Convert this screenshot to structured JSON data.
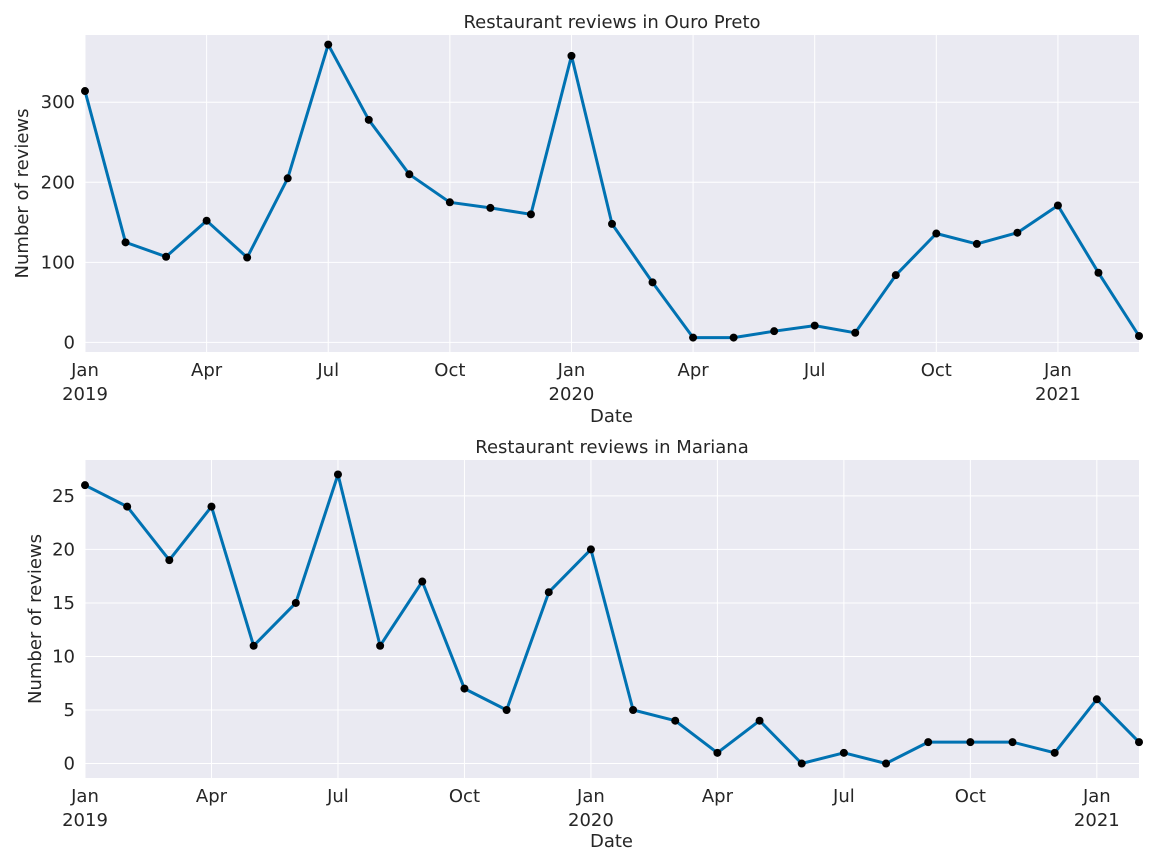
{
  "chart_data": [
    {
      "type": "line",
      "title": "Restaurant reviews in Ouro Preto",
      "xlabel": "Date",
      "ylabel": "Number of reviews",
      "x": [
        "2019-01",
        "2019-02",
        "2019-03",
        "2019-04",
        "2019-05",
        "2019-06",
        "2019-07",
        "2019-08",
        "2019-09",
        "2019-10",
        "2019-11",
        "2019-12",
        "2020-01",
        "2020-02",
        "2020-03",
        "2020-04",
        "2020-05",
        "2020-06",
        "2020-07",
        "2020-08",
        "2020-09",
        "2020-10",
        "2020-11",
        "2020-12",
        "2021-01",
        "2021-02",
        "2021-03"
      ],
      "values": [
        314,
        125,
        107,
        152,
        106,
        205,
        372,
        278,
        210,
        175,
        168,
        160,
        358,
        148,
        75,
        6,
        6,
        14,
        21,
        12,
        84,
        136,
        123,
        137,
        171,
        87,
        8
      ],
      "ylim": [
        -12,
        384
      ],
      "yticks": [
        0,
        100,
        200,
        300
      ],
      "xticks": [
        {
          "x": "2019-01",
          "label": "Jan",
          "sublabel": "2019"
        },
        {
          "x": "2019-04",
          "label": "Apr",
          "sublabel": ""
        },
        {
          "x": "2019-07",
          "label": "Jul",
          "sublabel": ""
        },
        {
          "x": "2019-10",
          "label": "Oct",
          "sublabel": ""
        },
        {
          "x": "2020-01",
          "label": "Jan",
          "sublabel": "2020"
        },
        {
          "x": "2020-04",
          "label": "Apr",
          "sublabel": ""
        },
        {
          "x": "2020-07",
          "label": "Jul",
          "sublabel": ""
        },
        {
          "x": "2020-10",
          "label": "Oct",
          "sublabel": ""
        },
        {
          "x": "2021-01",
          "label": "Jan",
          "sublabel": "2021"
        }
      ],
      "grid": true,
      "line_color": "#0072b2",
      "marker_color": "#000000",
      "background": "#eaeaf2"
    },
    {
      "type": "line",
      "title": "Restaurant reviews in Mariana",
      "xlabel": "Date",
      "ylabel": "Number of reviews",
      "x": [
        "2019-01",
        "2019-02",
        "2019-03",
        "2019-04",
        "2019-05",
        "2019-06",
        "2019-07",
        "2019-08",
        "2019-09",
        "2019-10",
        "2019-11",
        "2019-12",
        "2020-01",
        "2020-02",
        "2020-03",
        "2020-04",
        "2020-05",
        "2020-06",
        "2020-07",
        "2020-08",
        "2020-09",
        "2020-10",
        "2020-11",
        "2020-12",
        "2021-01",
        "2021-02"
      ],
      "values": [
        26,
        24,
        19,
        24,
        11,
        15,
        27,
        11,
        17,
        7,
        5,
        16,
        20,
        5,
        4,
        1,
        4,
        0,
        1,
        0,
        2,
        2,
        2,
        1,
        6,
        2
      ],
      "ylim": [
        -1.35,
        28.35
      ],
      "yticks": [
        0,
        5,
        10,
        15,
        20,
        25
      ],
      "xticks": [
        {
          "x": "2019-01",
          "label": "Jan",
          "sublabel": "2019"
        },
        {
          "x": "2019-04",
          "label": "Apr",
          "sublabel": ""
        },
        {
          "x": "2019-07",
          "label": "Jul",
          "sublabel": ""
        },
        {
          "x": "2019-10",
          "label": "Oct",
          "sublabel": ""
        },
        {
          "x": "2020-01",
          "label": "Jan",
          "sublabel": "2020"
        },
        {
          "x": "2020-04",
          "label": "Apr",
          "sublabel": ""
        },
        {
          "x": "2020-07",
          "label": "Jul",
          "sublabel": ""
        },
        {
          "x": "2020-10",
          "label": "Oct",
          "sublabel": ""
        },
        {
          "x": "2021-01",
          "label": "Jan",
          "sublabel": "2021"
        }
      ],
      "grid": true,
      "line_color": "#0072b2",
      "marker_color": "#000000",
      "background": "#eaeaf2"
    }
  ]
}
